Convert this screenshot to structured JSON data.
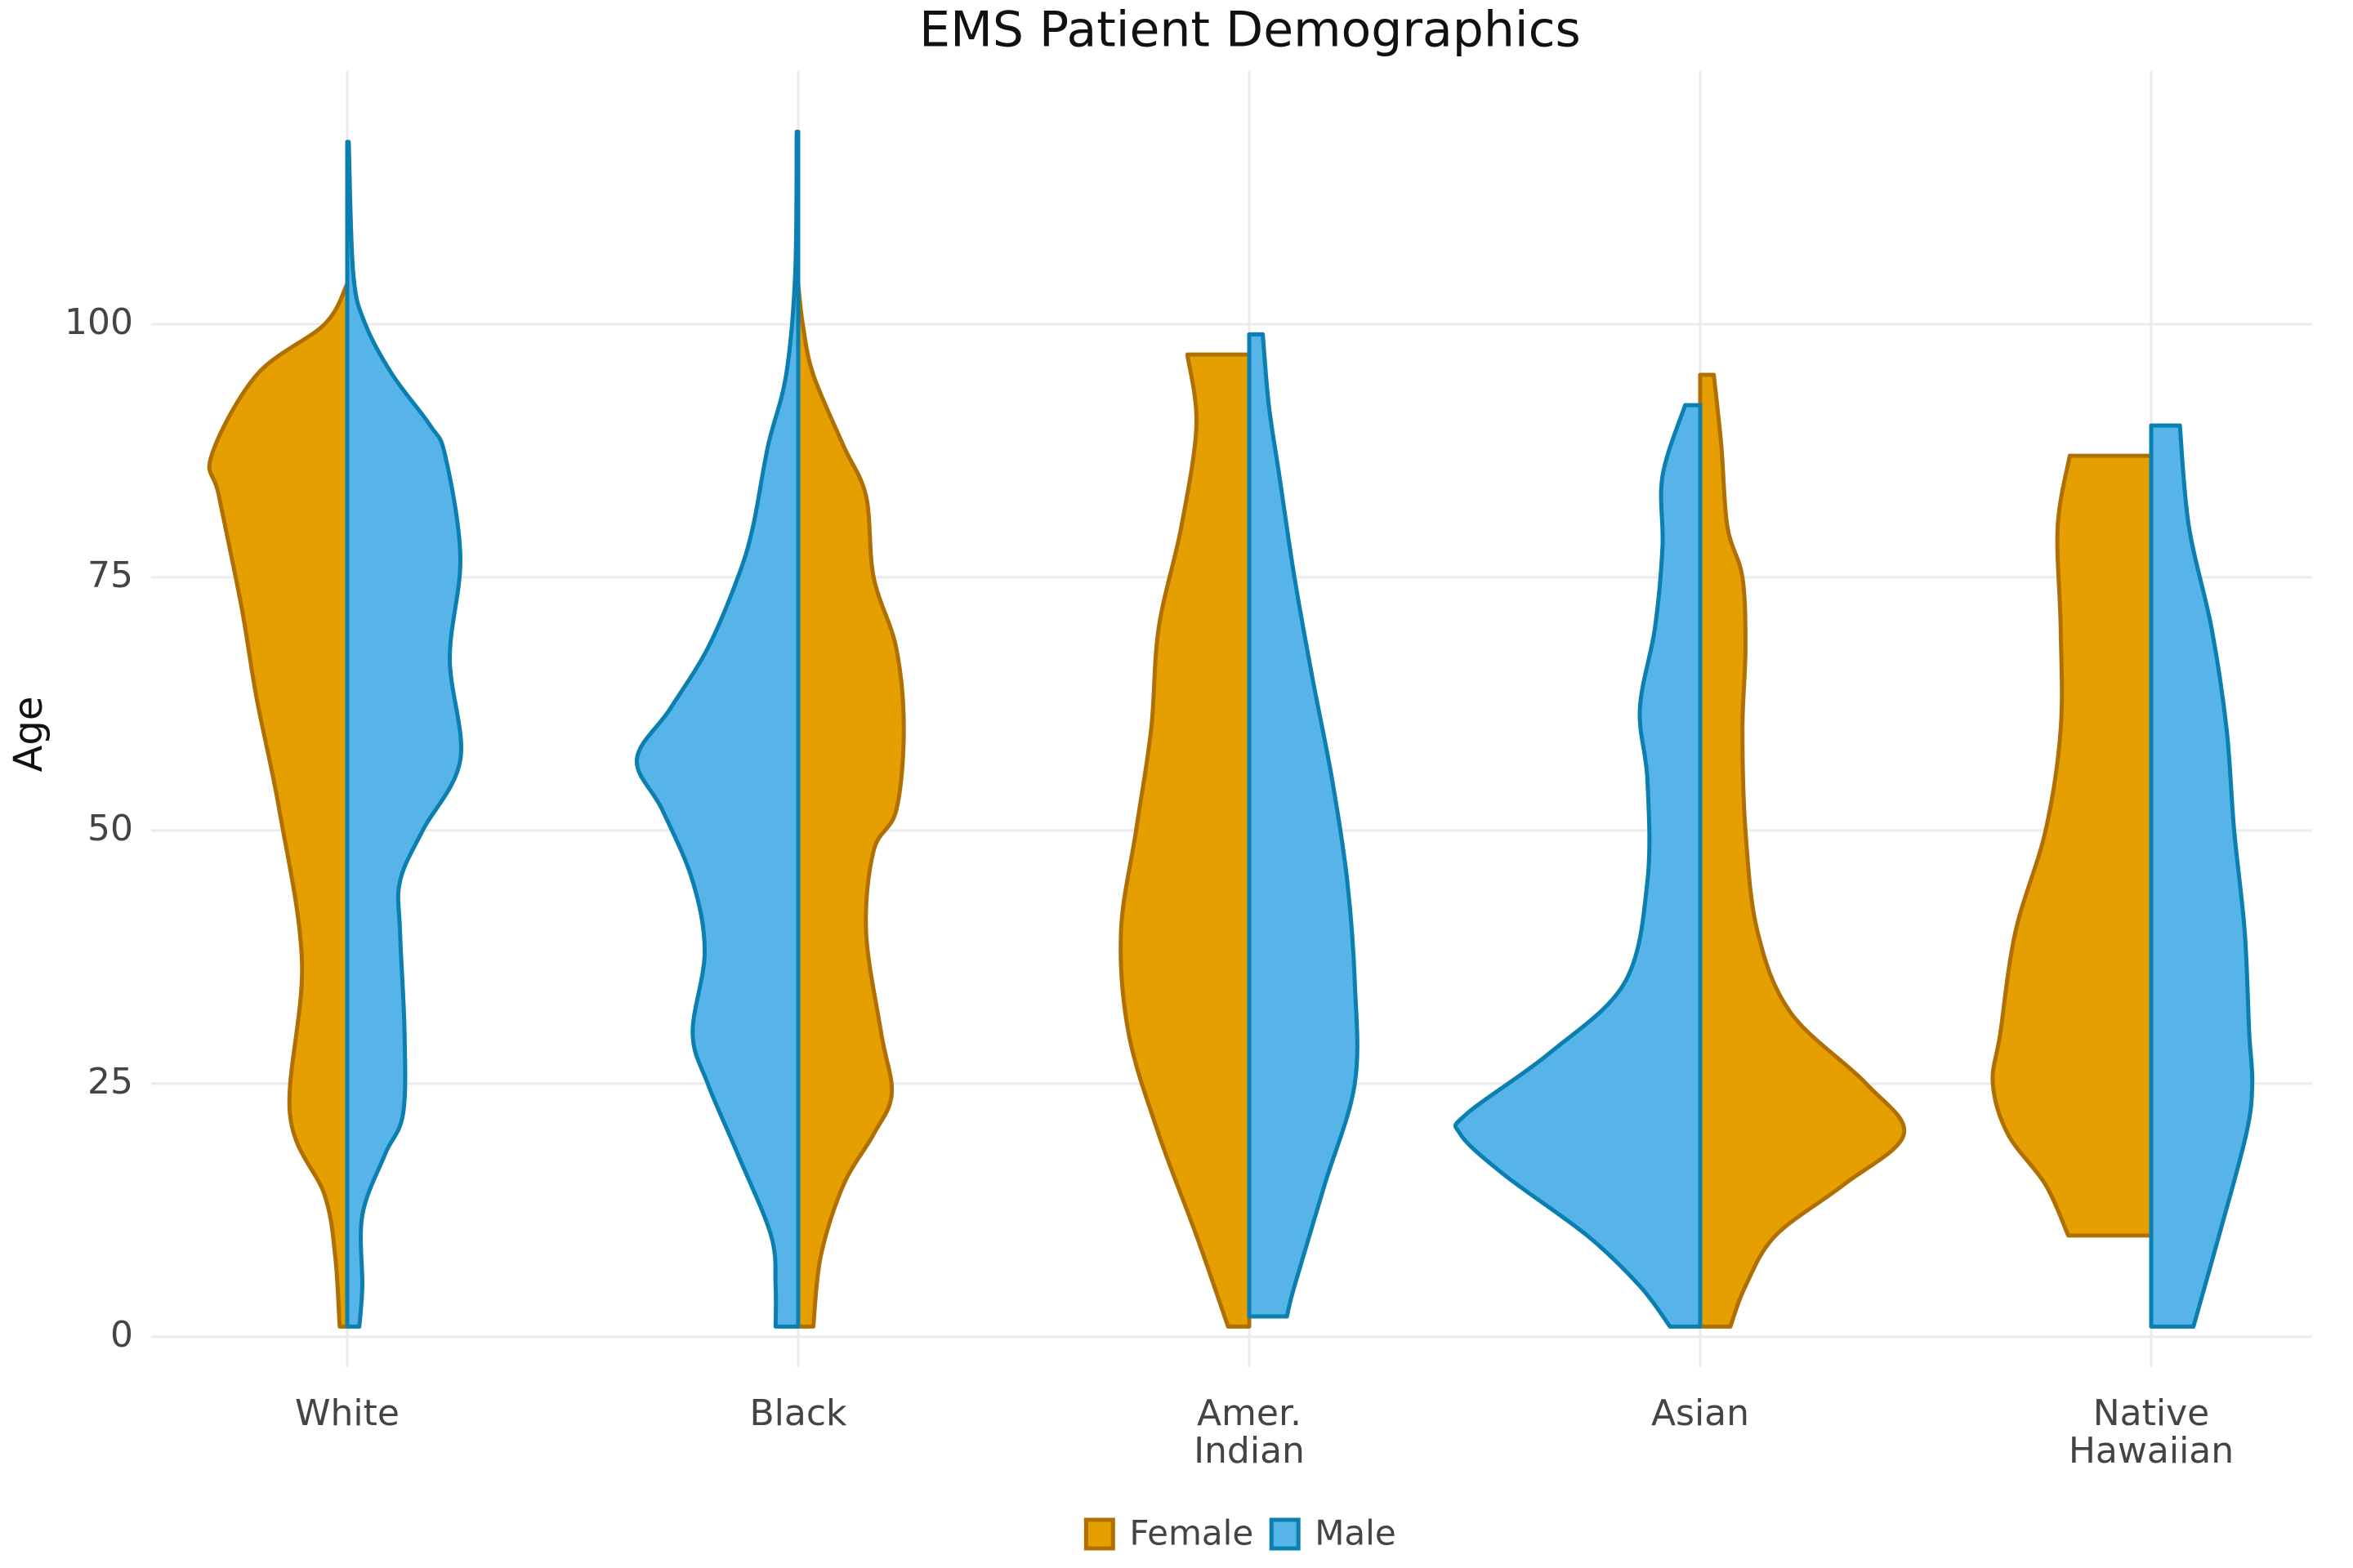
{
  "chart_data": {
    "type": "violin",
    "title": "EMS Patient Demographics",
    "y_label": "Age",
    "categories": [
      "White",
      "Black",
      "Amer.\nIndian",
      "Asian",
      "Native\nHawaiian"
    ],
    "ylim": [
      -3,
      125
    ],
    "yticks": [
      0,
      25,
      50,
      75,
      100
    ],
    "grid": true,
    "legend": "bottom",
    "series": [
      {
        "name": "Female",
        "color": "#e69f00",
        "edge_color": "#b07000",
        "violins": [
          {
            "side": "left",
            "age": [
              104,
              100,
              95,
              87,
              83,
              72,
              63,
              52,
              37,
              22,
              14,
              8,
              1
            ],
            "density": [
              0,
              0.15,
              0.6,
              0.9,
              0.85,
              0.7,
              0.6,
              0.45,
              0.3,
              0.38,
              0.15,
              0.08,
              0.05
            ]
          },
          {
            "side": "right",
            "age": [
              104,
              100,
              95,
              88,
              83,
              75,
              68,
              60,
              52,
              48,
              40,
              30,
              24,
              20,
              15,
              8,
              1
            ],
            "density": [
              0,
              0.03,
              0.1,
              0.3,
              0.45,
              0.5,
              0.65,
              0.7,
              0.65,
              0.5,
              0.45,
              0.55,
              0.62,
              0.5,
              0.3,
              0.15,
              0.1
            ]
          },
          {
            "side": "left",
            "age": [
              97,
              90,
              80,
              70,
              60,
              50,
              40,
              30,
              20,
              10,
              1
            ],
            "density": [
              0.41,
              0.35,
              0.45,
              0.6,
              0.65,
              0.75,
              0.85,
              0.8,
              0.6,
              0.35,
              0.14
            ]
          },
          {
            "side": "right",
            "age": [
              95,
              88,
              80,
              75,
              68,
              60,
              50,
              40,
              32,
              25,
              20,
              15,
              10,
              5,
              1
            ],
            "density": [
              0.09,
              0.14,
              0.18,
              0.28,
              0.3,
              0.28,
              0.3,
              0.38,
              0.6,
              1.1,
              1.35,
              0.95,
              0.5,
              0.3,
              0.2
            ]
          },
          {
            "side": "left",
            "age": [
              87,
              80,
              70,
              60,
              50,
              40,
              30,
              25,
              20,
              15,
              10
            ],
            "density": [
              0.54,
              0.62,
              0.6,
              0.6,
              0.7,
              0.9,
              1.0,
              1.05,
              0.95,
              0.7,
              0.55
            ]
          }
        ]
      },
      {
        "name": "Male",
        "color": "#56b4e9",
        "edge_color": "#0a7fb0",
        "violins": [
          {
            "side": "right",
            "age": [
              118,
              105,
              100,
              95,
              90,
              87,
              77,
              67,
              57,
              50,
              45,
              40,
              30,
              22,
              18,
              12,
              5,
              1
            ],
            "density": [
              0.01,
              0.04,
              0.12,
              0.3,
              0.55,
              0.65,
              0.75,
              0.68,
              0.75,
              0.5,
              0.35,
              0.35,
              0.38,
              0.37,
              0.25,
              0.1,
              0.1,
              0.08
            ]
          },
          {
            "side": "left",
            "age": [
              119,
              105,
              95,
              88,
              80,
              75,
              68,
              62,
              57,
              52,
              45,
              38,
              30,
              25,
              18,
              10,
              5,
              1
            ],
            "density": [
              0.01,
              0.02,
              0.08,
              0.2,
              0.3,
              0.4,
              0.6,
              0.85,
              1.07,
              0.9,
              0.7,
              0.62,
              0.7,
              0.6,
              0.4,
              0.18,
              0.15,
              0.15
            ]
          },
          {
            "side": "right",
            "age": [
              99,
              92,
              85,
              75,
              65,
              55,
              45,
              35,
              25,
              15,
              5,
              2
            ],
            "density": [
              0.09,
              0.13,
              0.2,
              0.3,
              0.42,
              0.55,
              0.65,
              0.7,
              0.7,
              0.5,
              0.3,
              0.25
            ]
          },
          {
            "side": "left",
            "age": [
              92,
              85,
              78,
              70,
              62,
              55,
              45,
              35,
              28,
              22,
              20,
              16,
              10,
              5,
              1
            ],
            "density": [
              0.1,
              0.25,
              0.25,
              0.3,
              0.4,
              0.35,
              0.35,
              0.5,
              1.0,
              1.55,
              1.59,
              1.3,
              0.75,
              0.4,
              0.2
            ]
          },
          {
            "side": "right",
            "age": [
              90,
              80,
              70,
              60,
              50,
              40,
              30,
              25,
              20,
              10,
              1
            ],
            "density": [
              0.19,
              0.25,
              0.4,
              0.5,
              0.55,
              0.62,
              0.65,
              0.67,
              0.63,
              0.45,
              0.28
            ]
          }
        ]
      }
    ]
  }
}
